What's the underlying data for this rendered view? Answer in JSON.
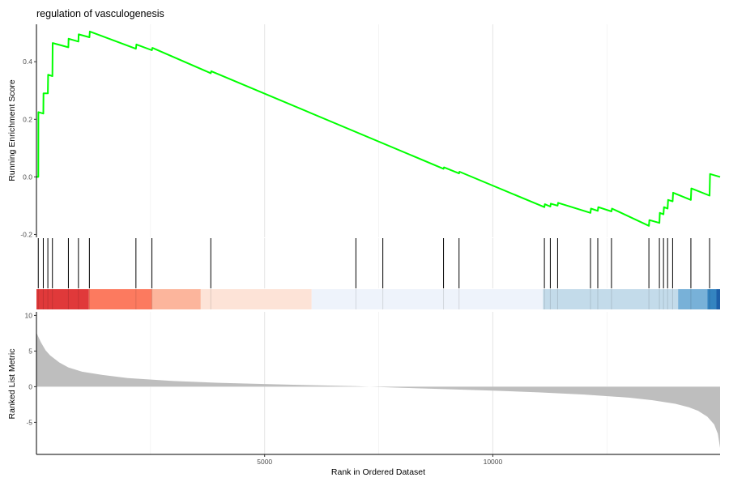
{
  "chart_data": {
    "type": "line",
    "title": "regulation of vasculogenesis",
    "xlabel": "Rank in Ordered Dataset",
    "xlim": [
      0,
      14980
    ],
    "x_ticks": [
      5000,
      10000
    ],
    "grid": true,
    "panels": {
      "enrichment": {
        "ylabel": "Running Enrichment Score",
        "ylim": [
          -0.21,
          0.53
        ],
        "y_ticks": [
          -0.2,
          0.0,
          0.2,
          0.4
        ],
        "y_tick_labels": [
          "-0.2",
          "0.0",
          "0.2",
          "0.4"
        ],
        "line_color": "#00ff00",
        "points": [
          {
            "x": 0,
            "y": 0.0
          },
          {
            "x": 40,
            "y": 0.0
          },
          {
            "x": 42,
            "y": 0.225
          },
          {
            "x": 150,
            "y": 0.22
          },
          {
            "x": 155,
            "y": 0.29
          },
          {
            "x": 250,
            "y": 0.29
          },
          {
            "x": 255,
            "y": 0.355
          },
          {
            "x": 350,
            "y": 0.35
          },
          {
            "x": 355,
            "y": 0.465
          },
          {
            "x": 700,
            "y": 0.45
          },
          {
            "x": 705,
            "y": 0.48
          },
          {
            "x": 920,
            "y": 0.47
          },
          {
            "x": 925,
            "y": 0.495
          },
          {
            "x": 1160,
            "y": 0.485
          },
          {
            "x": 1170,
            "y": 0.505
          },
          {
            "x": 2180,
            "y": 0.445
          },
          {
            "x": 2190,
            "y": 0.46
          },
          {
            "x": 2530,
            "y": 0.44
          },
          {
            "x": 2540,
            "y": 0.448
          },
          {
            "x": 3820,
            "y": 0.36
          },
          {
            "x": 3830,
            "y": 0.367
          },
          {
            "x": 8920,
            "y": 0.028
          },
          {
            "x": 8930,
            "y": 0.033
          },
          {
            "x": 9260,
            "y": 0.012
          },
          {
            "x": 9270,
            "y": 0.018
          },
          {
            "x": 11130,
            "y": -0.105
          },
          {
            "x": 11140,
            "y": -0.095
          },
          {
            "x": 11260,
            "y": -0.103
          },
          {
            "x": 11270,
            "y": -0.093
          },
          {
            "x": 11420,
            "y": -0.1
          },
          {
            "x": 11430,
            "y": -0.09
          },
          {
            "x": 12140,
            "y": -0.125
          },
          {
            "x": 12150,
            "y": -0.11
          },
          {
            "x": 12300,
            "y": -0.118
          },
          {
            "x": 12310,
            "y": -0.105
          },
          {
            "x": 12600,
            "y": -0.12
          },
          {
            "x": 12610,
            "y": -0.11
          },
          {
            "x": 13420,
            "y": -0.17
          },
          {
            "x": 13430,
            "y": -0.15
          },
          {
            "x": 13650,
            "y": -0.16
          },
          {
            "x": 13660,
            "y": -0.125
          },
          {
            "x": 13740,
            "y": -0.13
          },
          {
            "x": 13750,
            "y": -0.105
          },
          {
            "x": 13830,
            "y": -0.11
          },
          {
            "x": 13840,
            "y": -0.08
          },
          {
            "x": 13940,
            "y": -0.085
          },
          {
            "x": 13950,
            "y": -0.055
          },
          {
            "x": 14340,
            "y": -0.08
          },
          {
            "x": 14350,
            "y": -0.04
          },
          {
            "x": 14750,
            "y": -0.065
          },
          {
            "x": 14760,
            "y": 0.01
          },
          {
            "x": 14980,
            "y": 0.0
          }
        ]
      },
      "hits": {
        "color": "#000000",
        "positions": [
          40,
          150,
          250,
          350,
          700,
          920,
          1160,
          2180,
          2530,
          3820,
          7000,
          7590,
          8920,
          9260,
          11130,
          11260,
          11420,
          12140,
          12300,
          12600,
          13420,
          13650,
          13740,
          13830,
          13940,
          14340,
          14750
        ]
      },
      "color_bar": {
        "segments": [
          {
            "from": 0,
            "to": 1150,
            "color": "#e0393a"
          },
          {
            "from": 1150,
            "to": 2530,
            "color": "#fc7a5f"
          },
          {
            "from": 2530,
            "to": 3600,
            "color": "#fcb59c"
          },
          {
            "from": 3600,
            "to": 6030,
            "color": "#fde3d7"
          },
          {
            "from": 6030,
            "to": 11100,
            "color": "#eef3fb"
          },
          {
            "from": 11100,
            "to": 14060,
            "color": "#c3dbea"
          },
          {
            "from": 14060,
            "to": 14700,
            "color": "#78b1d8"
          },
          {
            "from": 14700,
            "to": 14900,
            "color": "#3484c0"
          },
          {
            "from": 14900,
            "to": 14980,
            "color": "#1d5fa8"
          }
        ]
      },
      "ranked_metric": {
        "ylabel": "Ranked List Metric",
        "ylim": [
          -9.5,
          10.5
        ],
        "y_ticks": [
          -5,
          0,
          5,
          10
        ],
        "y_tick_labels": [
          "-5",
          "0",
          "5",
          "10"
        ],
        "fill_color": "#bebebe",
        "points": [
          {
            "x": 0,
            "y": 7.6
          },
          {
            "x": 40,
            "y": 7.0
          },
          {
            "x": 100,
            "y": 6.2
          },
          {
            "x": 200,
            "y": 5.1
          },
          {
            "x": 300,
            "y": 4.4
          },
          {
            "x": 500,
            "y": 3.4
          },
          {
            "x": 700,
            "y": 2.7
          },
          {
            "x": 1000,
            "y": 2.1
          },
          {
            "x": 1500,
            "y": 1.6
          },
          {
            "x": 2000,
            "y": 1.2
          },
          {
            "x": 3000,
            "y": 0.8
          },
          {
            "x": 4000,
            "y": 0.55
          },
          {
            "x": 5000,
            "y": 0.38
          },
          {
            "x": 6000,
            "y": 0.22
          },
          {
            "x": 7000,
            "y": 0.08
          },
          {
            "x": 7300,
            "y": 0.0
          },
          {
            "x": 8000,
            "y": -0.15
          },
          {
            "x": 9000,
            "y": -0.35
          },
          {
            "x": 10000,
            "y": -0.55
          },
          {
            "x": 11000,
            "y": -0.8
          },
          {
            "x": 12000,
            "y": -1.1
          },
          {
            "x": 13000,
            "y": -1.55
          },
          {
            "x": 13500,
            "y": -1.9
          },
          {
            "x": 14000,
            "y": -2.4
          },
          {
            "x": 14300,
            "y": -2.9
          },
          {
            "x": 14500,
            "y": -3.4
          },
          {
            "x": 14700,
            "y": -4.2
          },
          {
            "x": 14850,
            "y": -5.3
          },
          {
            "x": 14930,
            "y": -6.6
          },
          {
            "x": 14980,
            "y": -8.6
          }
        ]
      }
    }
  }
}
